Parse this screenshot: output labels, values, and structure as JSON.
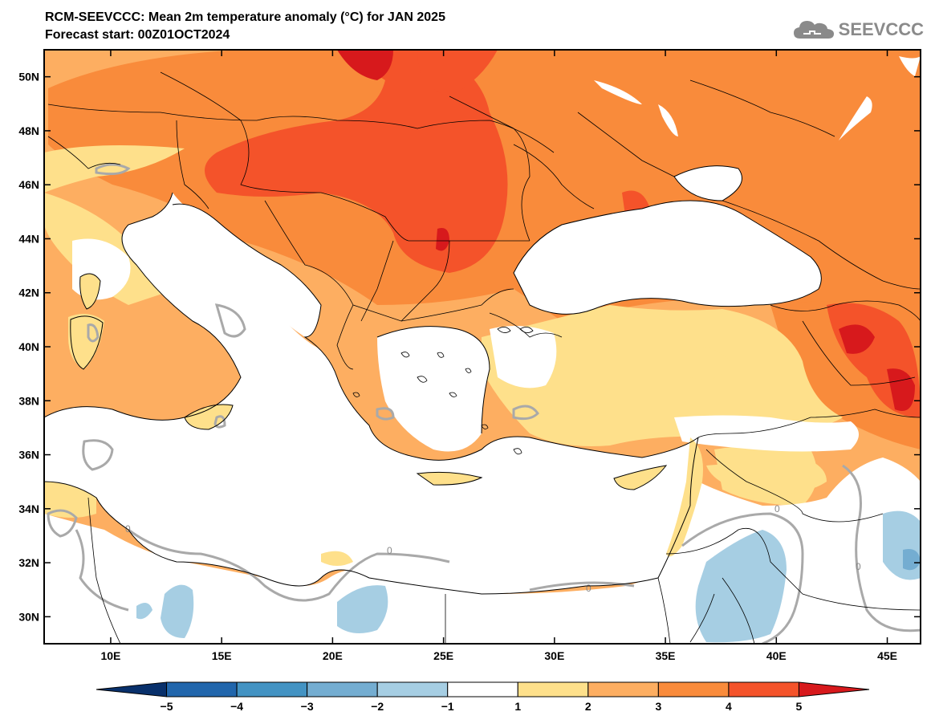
{
  "header": {
    "title": "RCM-SEEVCCC: Mean 2m temperature anomaly (°C) for JAN 2025",
    "subtitle": "Forecast start: 00Z01OCT2024",
    "logo_text": "SEEVCCC",
    "logo_icon": "cloud-icon"
  },
  "map": {
    "lon_ticks": [
      "10E",
      "15E",
      "20E",
      "25E",
      "30E",
      "35E",
      "40E",
      "45E"
    ],
    "lat_ticks": [
      "50N",
      "48N",
      "46N",
      "44N",
      "42N",
      "40N",
      "38N",
      "36N",
      "34N",
      "32N",
      "30N"
    ],
    "contour_label": "0",
    "extent": {
      "lon_min": 7,
      "lon_max": 46.5,
      "lat_min": 29,
      "lat_max": 51
    }
  },
  "colorbar": {
    "ticks": [
      "−5",
      "−4",
      "−3",
      "−2",
      "−1",
      "1",
      "2",
      "3",
      "4",
      "5"
    ],
    "colors": [
      "#08306b",
      "#2166ac",
      "#4393c3",
      "#74add1",
      "#a6cee3",
      "#ffffff",
      "#fee08b",
      "#fdae61",
      "#f98b3b",
      "#f4532a",
      "#d7191c"
    ]
  },
  "palette": {
    "ocean": "#ffffff",
    "c1": "#fee08b",
    "c2": "#fdae61",
    "c3": "#f98b3b",
    "c4": "#f4532a",
    "c5": "#d7191c",
    "cold1": "#a6cee3",
    "cold2": "#74add1",
    "zero_contour": "#a9a9a9",
    "border": "#000000"
  }
}
